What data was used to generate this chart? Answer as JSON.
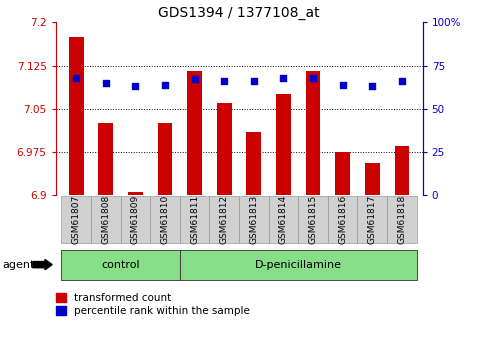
{
  "title": "GDS1394 / 1377108_at",
  "samples": [
    "GSM61807",
    "GSM61808",
    "GSM61809",
    "GSM61810",
    "GSM61811",
    "GSM61812",
    "GSM61813",
    "GSM61814",
    "GSM61815",
    "GSM61816",
    "GSM61817",
    "GSM61818"
  ],
  "bar_values": [
    7.175,
    7.025,
    6.905,
    7.025,
    7.115,
    7.06,
    7.01,
    7.075,
    7.115,
    6.975,
    6.955,
    6.985
  ],
  "dot_values": [
    68,
    65,
    63,
    64,
    67,
    66,
    66,
    68,
    68,
    64,
    63,
    66
  ],
  "bar_color": "#cc0000",
  "dot_color": "#0000cc",
  "ylim_left": [
    6.9,
    7.2
  ],
  "ylim_right": [
    0,
    100
  ],
  "yticks_left": [
    6.9,
    6.975,
    7.05,
    7.125,
    7.2
  ],
  "ytick_labels_left": [
    "6.9",
    "6.975",
    "7.05",
    "7.125",
    "7.2"
  ],
  "yticks_right": [
    0,
    25,
    50,
    75,
    100
  ],
  "ytick_labels_right": [
    "0",
    "25",
    "50",
    "75",
    "100%"
  ],
  "grid_values": [
    7.125,
    7.05,
    6.975
  ],
  "n_control": 4,
  "n_treatment": 8,
  "control_label": "control",
  "treatment_label": "D-penicillamine",
  "agent_label": "agent",
  "legend_bar_label": "transformed count",
  "legend_dot_label": "percentile rank within the sample",
  "panel_bg": "#ffffff",
  "group_bg": "#88dd88",
  "sample_box_bg": "#d0d0d0",
  "bar_width": 0.5,
  "bar_bottom": 6.9
}
